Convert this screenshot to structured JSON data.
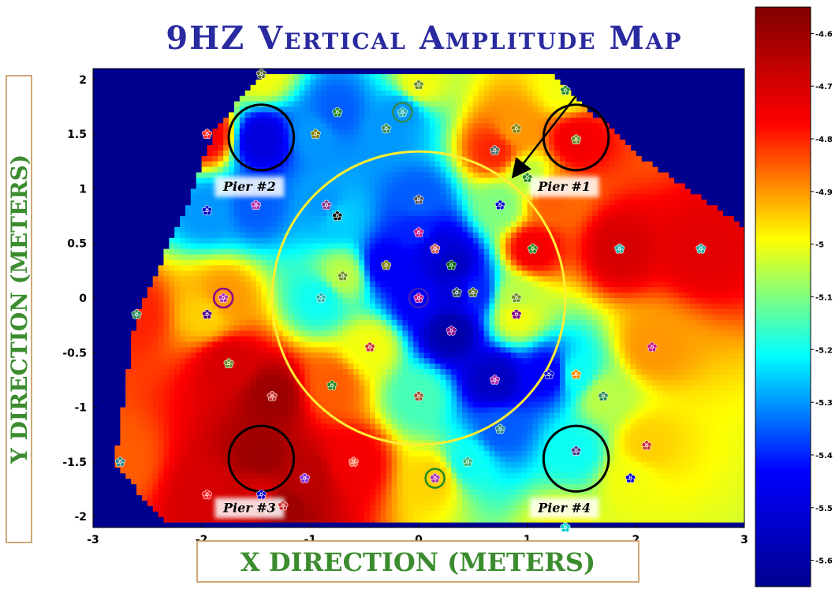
{
  "chart_data": {
    "type": "heatmap",
    "title": "9HZ Vertical Amplitude Map",
    "xlabel": "X DIRECTION (METERS)",
    "ylabel": "Y DIRECTION (METERS)",
    "xlim": [
      -3,
      3
    ],
    "ylim": [
      -2.1,
      2.1
    ],
    "xticks": [
      "-3",
      "-2",
      "-1",
      "0",
      "1",
      "2",
      "3"
    ],
    "yticks": [
      "2",
      "1.5",
      "1",
      "0.5",
      "0",
      "-0.5",
      "-1",
      "-1.5",
      "-2"
    ],
    "colorbar": {
      "range": [
        -5.65,
        -4.55
      ],
      "ticks": [
        "-4.6",
        "-4.7",
        "-4.8",
        "-4.9",
        "-5",
        "-5.1",
        "-5.2",
        "-5.3",
        "-5.4",
        "-5.5",
        "-5.6"
      ],
      "colormap": [
        "#00008f",
        "#0000ff",
        "#00ffff",
        "#ffff00",
        "#ff0000",
        "#800000"
      ]
    },
    "background_color": "#00008f",
    "large_circle": {
      "center": [
        0,
        0
      ],
      "radius": 1.35,
      "color": "#ffee33"
    },
    "piers": [
      {
        "label": "Pier #1",
        "center": [
          1.45,
          1.47
        ],
        "radius": 0.3
      },
      {
        "label": "Pier #2",
        "center": [
          -1.45,
          1.47
        ],
        "radius": 0.3
      },
      {
        "label": "Pier #3",
        "center": [
          -1.45,
          -1.47
        ],
        "radius": 0.3
      },
      {
        "label": "Pier #4",
        "center": [
          1.45,
          -1.47
        ],
        "radius": 0.3
      }
    ],
    "arrow": {
      "from": [
        1.45,
        1.85
      ],
      "to": [
        0.9,
        1.15
      ]
    },
    "hull": [
      [
        -2.8,
        -1.5
      ],
      [
        -2.6,
        -0.15
      ],
      [
        -2.1,
        0.9
      ],
      [
        -1.9,
        1.5
      ],
      [
        -1.45,
        2.05
      ],
      [
        1.2,
        2.05
      ],
      [
        2.1,
        1.25
      ],
      [
        3.0,
        0.65
      ],
      [
        3.0,
        -2.05
      ],
      [
        -2.35,
        -2.05
      ]
    ],
    "samples": [
      {
        "x": -1.45,
        "y": 2.05,
        "v": -5.0
      },
      {
        "x": 0.0,
        "y": 1.95,
        "v": -5.0
      },
      {
        "x": 1.35,
        "y": 1.9,
        "v": -5.0
      },
      {
        "x": -1.95,
        "y": 1.5,
        "v": -4.75
      },
      {
        "x": -1.45,
        "y": 1.45,
        "v": -5.5
      },
      {
        "x": -0.95,
        "y": 1.5,
        "v": -5.3
      },
      {
        "x": -0.75,
        "y": 1.7,
        "v": -5.35
      },
      {
        "x": -0.3,
        "y": 1.55,
        "v": -5.3
      },
      {
        "x": -0.15,
        "y": 1.7,
        "v": -5.3
      },
      {
        "x": 0.7,
        "y": 1.35,
        "v": -4.8
      },
      {
        "x": 0.9,
        "y": 1.55,
        "v": -4.9
      },
      {
        "x": 1.45,
        "y": 1.45,
        "v": -4.75
      },
      {
        "x": 1.0,
        "y": 1.1,
        "v": -5.05
      },
      {
        "x": 1.2,
        "y": 0.9,
        "v": -4.85
      },
      {
        "x": -1.95,
        "y": 0.8,
        "v": -5.3
      },
      {
        "x": -1.5,
        "y": 0.85,
        "v": -5.35
      },
      {
        "x": -0.85,
        "y": 0.85,
        "v": -5.3
      },
      {
        "x": -0.75,
        "y": 0.75,
        "v": -5.25
      },
      {
        "x": 0.0,
        "y": 0.9,
        "v": -5.35
      },
      {
        "x": 0.75,
        "y": 0.85,
        "v": -5.1
      },
      {
        "x": 1.05,
        "y": 0.45,
        "v": -4.75
      },
      {
        "x": 1.85,
        "y": 0.45,
        "v": -4.7
      },
      {
        "x": 2.6,
        "y": 0.45,
        "v": -4.72
      },
      {
        "x": 0.0,
        "y": 0.6,
        "v": -5.4
      },
      {
        "x": 0.15,
        "y": 0.45,
        "v": -5.5
      },
      {
        "x": -0.3,
        "y": 0.3,
        "v": -5.45
      },
      {
        "x": 0.3,
        "y": 0.3,
        "v": -5.55
      },
      {
        "x": -0.7,
        "y": 0.2,
        "v": -5.05
      },
      {
        "x": 0.0,
        "y": 0.0,
        "v": -5.45
      },
      {
        "x": 0.35,
        "y": 0.05,
        "v": -5.5
      },
      {
        "x": 0.5,
        "y": 0.05,
        "v": -5.4
      },
      {
        "x": 0.9,
        "y": 0.0,
        "v": -5.05
      },
      {
        "x": 0.9,
        "y": -0.15,
        "v": -5.0
      },
      {
        "x": -1.8,
        "y": 0.0,
        "v": -4.9
      },
      {
        "x": -1.95,
        "y": -0.15,
        "v": -4.95
      },
      {
        "x": -0.9,
        "y": 0.0,
        "v": -5.2
      },
      {
        "x": -2.6,
        "y": -0.15,
        "v": -4.8
      },
      {
        "x": 0.3,
        "y": -0.3,
        "v": -5.6
      },
      {
        "x": -0.45,
        "y": -0.45,
        "v": -5.0
      },
      {
        "x": -1.75,
        "y": -0.6,
        "v": -4.7
      },
      {
        "x": 0.7,
        "y": -0.75,
        "v": -5.55
      },
      {
        "x": 1.2,
        "y": -0.7,
        "v": -5.45
      },
      {
        "x": 1.45,
        "y": -0.7,
        "v": -5.2
      },
      {
        "x": 2.15,
        "y": -0.45,
        "v": -4.9
      },
      {
        "x": -0.8,
        "y": -0.8,
        "v": -4.85
      },
      {
        "x": -1.35,
        "y": -0.9,
        "v": -4.6
      },
      {
        "x": 0.0,
        "y": -0.9,
        "v": -5.15
      },
      {
        "x": 1.7,
        "y": -0.9,
        "v": -5.05
      },
      {
        "x": 0.75,
        "y": -1.2,
        "v": -5.35
      },
      {
        "x": -1.45,
        "y": -1.45,
        "v": -4.6
      },
      {
        "x": -0.6,
        "y": -1.5,
        "v": -4.75
      },
      {
        "x": 0.45,
        "y": -1.5,
        "v": -5.2
      },
      {
        "x": 1.45,
        "y": -1.4,
        "v": -5.2
      },
      {
        "x": 2.1,
        "y": -1.35,
        "v": -4.95
      },
      {
        "x": -2.75,
        "y": -1.5,
        "v": -4.85
      },
      {
        "x": -1.05,
        "y": -1.65,
        "v": -4.65
      },
      {
        "x": 0.15,
        "y": -1.65,
        "v": -4.95
      },
      {
        "x": 1.95,
        "y": -1.65,
        "v": -5.0
      },
      {
        "x": -1.95,
        "y": -1.8,
        "v": -4.7
      },
      {
        "x": -1.45,
        "y": -1.8,
        "v": -4.7
      },
      {
        "x": -1.25,
        "y": -1.9,
        "v": -4.6
      },
      {
        "x": 1.35,
        "y": -2.1,
        "v": -5.0
      }
    ],
    "markers": [
      {
        "x": -1.45,
        "y": 2.05,
        "color": "#556b2f"
      },
      {
        "x": 0.0,
        "y": 1.95,
        "color": "#6b8e23"
      },
      {
        "x": 1.35,
        "y": 1.9,
        "color": "#228b22"
      },
      {
        "x": -1.95,
        "y": 1.5,
        "color": "#ff2222"
      },
      {
        "x": -0.95,
        "y": 1.5,
        "color": "#808000"
      },
      {
        "x": -0.75,
        "y": 1.7,
        "color": "#228b22"
      },
      {
        "x": -0.3,
        "y": 1.55,
        "color": "#2e8b57"
      },
      {
        "x": -0.15,
        "y": 1.7,
        "color": "#20b2aa"
      },
      {
        "x": 0.7,
        "y": 1.35,
        "color": "#556b6b"
      },
      {
        "x": 0.9,
        "y": 1.55,
        "color": "#808000"
      },
      {
        "x": 1.45,
        "y": 1.45,
        "color": "#6b8e23"
      },
      {
        "x": 1.0,
        "y": 1.1,
        "color": "#228b22"
      },
      {
        "x": -1.95,
        "y": 0.8,
        "color": "#0000cd"
      },
      {
        "x": -1.5,
        "y": 0.85,
        "color": "#b030b0"
      },
      {
        "x": -0.85,
        "y": 0.85,
        "color": "#8b3a8b"
      },
      {
        "x": -0.75,
        "y": 0.75,
        "color": "#111111"
      },
      {
        "x": 0.0,
        "y": 0.9,
        "color": "#555555"
      },
      {
        "x": 0.75,
        "y": 0.85,
        "color": "#0000cd"
      },
      {
        "x": 1.05,
        "y": 0.45,
        "color": "#228b22"
      },
      {
        "x": 1.85,
        "y": 0.45,
        "color": "#20b2aa"
      },
      {
        "x": 2.6,
        "y": 0.45,
        "color": "#20b2aa"
      },
      {
        "x": 0.0,
        "y": 0.6,
        "color": "#c71585"
      },
      {
        "x": 0.15,
        "y": 0.45,
        "color": "#cd5c5c"
      },
      {
        "x": -0.3,
        "y": 0.3,
        "color": "#808000"
      },
      {
        "x": 0.3,
        "y": 0.3,
        "color": "#006400"
      },
      {
        "x": -0.7,
        "y": 0.2,
        "color": "#6b8e23"
      },
      {
        "x": 0.0,
        "y": 0.0,
        "color": "#c71585"
      },
      {
        "x": 0.35,
        "y": 0.05,
        "color": "#2f4f4f"
      },
      {
        "x": 0.5,
        "y": 0.05,
        "color": "#556b2f"
      },
      {
        "x": 0.9,
        "y": 0.0,
        "color": "#6b8e23"
      },
      {
        "x": 0.9,
        "y": -0.15,
        "color": "#800080"
      },
      {
        "x": -1.8,
        "y": 0.0,
        "color": "#b030b0"
      },
      {
        "x": -1.95,
        "y": -0.15,
        "color": "#4b0082"
      },
      {
        "x": -0.9,
        "y": 0.0,
        "color": "#20b2aa"
      },
      {
        "x": -2.6,
        "y": -0.15,
        "color": "#2e8b57"
      },
      {
        "x": 0.3,
        "y": -0.3,
        "color": "#8b008b"
      },
      {
        "x": -0.45,
        "y": -0.45,
        "color": "#cd3333"
      },
      {
        "x": -1.75,
        "y": -0.6,
        "color": "#6b8e23"
      },
      {
        "x": 0.7,
        "y": -0.75,
        "color": "#b030b0"
      },
      {
        "x": 1.2,
        "y": -0.7,
        "color": "#0000cd"
      },
      {
        "x": 1.45,
        "y": -0.7,
        "color": "#ff8c00"
      },
      {
        "x": 2.15,
        "y": -0.45,
        "color": "#c71585"
      },
      {
        "x": -0.8,
        "y": -0.8,
        "color": "#228b22"
      },
      {
        "x": -1.35,
        "y": -0.9,
        "color": "#cd3333"
      },
      {
        "x": 0.0,
        "y": -0.9,
        "color": "#a0522d"
      },
      {
        "x": 1.7,
        "y": -0.9,
        "color": "#2e8b57"
      },
      {
        "x": 0.75,
        "y": -1.2,
        "color": "#2f8f8f"
      },
      {
        "x": -0.6,
        "y": -1.5,
        "color": "#ff6347"
      },
      {
        "x": 0.45,
        "y": -1.5,
        "color": "#3cb371"
      },
      {
        "x": 1.45,
        "y": -1.4,
        "color": "#483d8b"
      },
      {
        "x": 2.1,
        "y": -1.35,
        "color": "#cd3333"
      },
      {
        "x": -2.75,
        "y": -1.5,
        "color": "#2e8b8b"
      },
      {
        "x": -1.05,
        "y": -1.65,
        "color": "#8a2be2"
      },
      {
        "x": 0.15,
        "y": -1.65,
        "color": "#b030b0"
      },
      {
        "x": 1.95,
        "y": -1.65,
        "color": "#0000cd"
      },
      {
        "x": -1.95,
        "y": -1.8,
        "color": "#ff2222"
      },
      {
        "x": -1.45,
        "y": -1.8,
        "color": "#0000cd"
      },
      {
        "x": -1.25,
        "y": -1.9,
        "color": "#cd3333"
      },
      {
        "x": 1.35,
        "y": -2.1,
        "color": "#00ced1"
      }
    ],
    "ringed_markers": [
      {
        "x": -0.15,
        "y": 1.7,
        "color": "#2e8b57"
      },
      {
        "x": -1.8,
        "y": 0.0,
        "color": "#8b008b"
      },
      {
        "x": 0.0,
        "y": 0.0,
        "color": "#3a20c0"
      },
      {
        "x": 0.15,
        "y": -1.65,
        "color": "#228b22"
      }
    ]
  }
}
